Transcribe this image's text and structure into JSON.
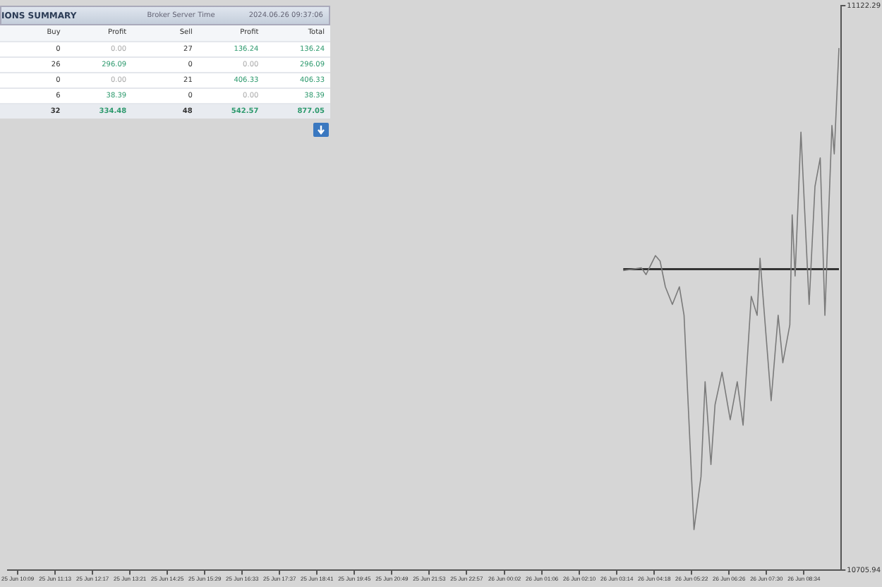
{
  "chart_data": [
    {
      "type": "line",
      "xlim": [
        "2024-06-25T09:52",
        "2024-06-26T09:38"
      ],
      "ylim": [
        10705.94,
        11122.29
      ],
      "xticks": [
        {
          "value": "2024-06-25T10:09",
          "label": "25 Jun 10:09"
        },
        {
          "value": "2024-06-25T11:13",
          "label": "25 Jun 11:13"
        },
        {
          "value": "2024-06-25T12:17",
          "label": "25 Jun 12:17"
        },
        {
          "value": "2024-06-25T13:21",
          "label": "25 Jun 13:21"
        },
        {
          "value": "2024-06-25T14:25",
          "label": "25 Jun 14:25"
        },
        {
          "value": "2024-06-25T15:29",
          "label": "25 Jun 15:29"
        },
        {
          "value": "2024-06-25T16:33",
          "label": "25 Jun 16:33"
        },
        {
          "value": "2024-06-25T17:37",
          "label": "25 Jun 17:37"
        },
        {
          "value": "2024-06-25T18:41",
          "label": "25 Jun 18:41"
        },
        {
          "value": "2024-06-25T19:45",
          "label": "25 Jun 19:45"
        },
        {
          "value": "2024-06-25T20:49",
          "label": "25 Jun 20:49"
        },
        {
          "value": "2024-06-25T21:53",
          "label": "25 Jun 21:53"
        },
        {
          "value": "2024-06-25T22:57",
          "label": "25 Jun 22:57"
        },
        {
          "value": "2024-06-26T00:02",
          "label": "26 Jun 00:02"
        },
        {
          "value": "2024-06-26T01:06",
          "label": "26 Jun 01:06"
        },
        {
          "value": "2024-06-26T02:10",
          "label": "26 Jun 02:10"
        },
        {
          "value": "2024-06-26T03:14",
          "label": "26 Jun 03:14"
        },
        {
          "value": "2024-06-26T04:18",
          "label": "26 Jun 04:18"
        },
        {
          "value": "2024-06-26T05:22",
          "label": "26 Jun 05:22"
        },
        {
          "value": "2024-06-26T06:26",
          "label": "26 Jun 06:26"
        },
        {
          "value": "2024-06-26T07:30",
          "label": "26 Jun 07:30"
        },
        {
          "value": "2024-06-26T08:34",
          "label": "26 Jun 08:34"
        }
      ],
      "yticks": [
        10705.94,
        11122.29
      ],
      "series": [
        {
          "type": "line",
          "color": "#7a7a7a",
          "x": [
            "2024-06-26T03:25",
            "2024-06-26T03:56",
            "2024-06-26T04:04",
            "2024-06-26T04:20",
            "2024-06-26T04:28",
            "2024-06-26T04:37",
            "2024-06-26T04:49",
            "2024-06-26T05:01",
            "2024-06-26T05:09",
            "2024-06-26T05:26",
            "2024-06-26T05:38",
            "2024-06-26T05:45",
            "2024-06-26T05:55",
            "2024-06-26T06:02",
            "2024-06-26T06:14",
            "2024-06-26T06:28",
            "2024-06-26T06:40",
            "2024-06-26T06:50",
            "2024-06-26T07:04",
            "2024-06-26T07:14",
            "2024-06-26T07:19",
            "2024-06-26T07:38",
            "2024-06-26T07:50",
            "2024-06-26T07:58",
            "2024-06-26T08:10",
            "2024-06-26T08:14",
            "2024-06-26T08:19",
            "2024-06-26T08:29",
            "2024-06-26T08:43",
            "2024-06-26T08:53",
            "2024-06-26T09:02",
            "2024-06-26T09:10",
            "2024-06-26T09:22",
            "2024-06-26T09:26",
            "2024-06-26T09:34"
          ],
          "values": [
            10927,
            10929,
            10924,
            10938,
            10934,
            10915,
            10902,
            10915,
            10894,
            10736,
            10775,
            10845,
            10784,
            10828,
            10852,
            10817,
            10845,
            10813,
            10908,
            10894,
            10936,
            10831,
            10894,
            10859,
            10887,
            10968,
            10923,
            11029,
            10902,
            10989,
            11010,
            10894,
            11034,
            11013,
            11091
          ]
        },
        {
          "type": "line",
          "color": "#333333",
          "x": [
            "2024-06-26T03:25",
            "2024-06-26T09:34"
          ],
          "values": [
            10928,
            10928
          ]
        }
      ]
    },
    {
      "type": "other",
      "title": "IONS SUMMARY",
      "annotations": [
        "Broker Server Time",
        "2024.06.26 09:37:06"
      ],
      "categories": [
        "Buy",
        "Profit",
        "Sell",
        "Profit",
        "Total"
      ],
      "cell_labels": [
        [
          "0",
          "0.00",
          "27",
          "136.24",
          "136.24"
        ],
        [
          "26",
          "296.09",
          "0",
          "0.00",
          "296.09"
        ],
        [
          "0",
          "0.00",
          "21",
          "406.33",
          "406.33"
        ],
        [
          "6",
          "38.39",
          "0",
          "0.00",
          "38.39"
        ],
        [
          "32",
          "334.48",
          "48",
          "542.57",
          "877.05"
        ]
      ]
    }
  ]
}
